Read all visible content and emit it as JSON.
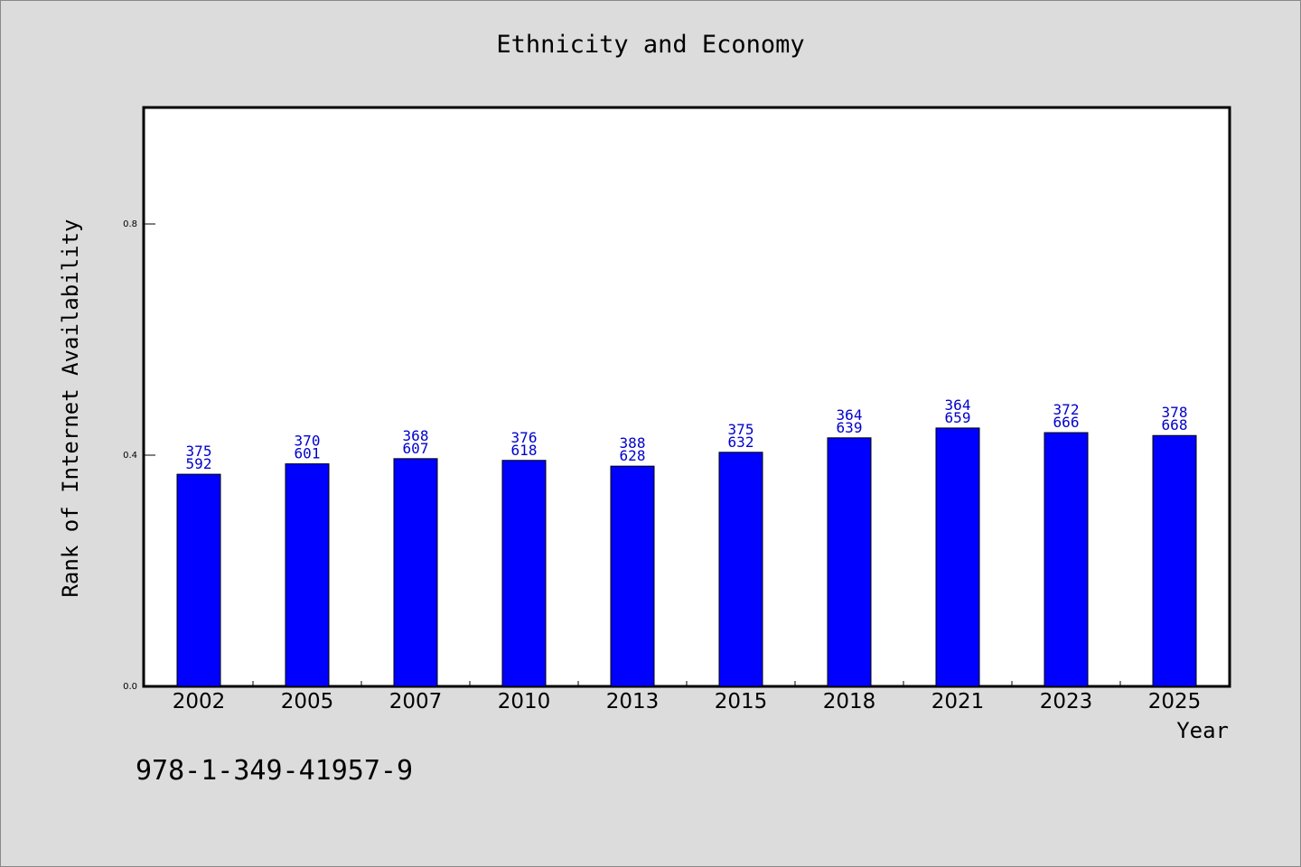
{
  "chart_data": {
    "type": "bar",
    "title": "Ethnicity and Economy",
    "xlabel": "Year",
    "ylabel": "Rank of Internet Availability",
    "ylim": [
      0,
      1.0
    ],
    "yticks": [
      "0.0",
      "0.4",
      "0.8"
    ],
    "categories": [
      "2002",
      "2005",
      "2007",
      "2010",
      "2013",
      "2015",
      "2018",
      "2021",
      "2023",
      "2025"
    ],
    "values": [
      0.367,
      0.385,
      0.394,
      0.391,
      0.381,
      0.405,
      0.43,
      0.447,
      0.439,
      0.434
    ],
    "labels_top": [
      "375",
      "370",
      "368",
      "376",
      "388",
      "375",
      "364",
      "364",
      "372",
      "378"
    ],
    "labels_bottom": [
      "592",
      "601",
      "607",
      "618",
      "628",
      "632",
      "639",
      "659",
      "666",
      "668"
    ],
    "bar_color": "#0000ff",
    "label_color": "#0000cc",
    "grid": false
  },
  "footer": {
    "isbn": "978-1-349-41957-9"
  }
}
